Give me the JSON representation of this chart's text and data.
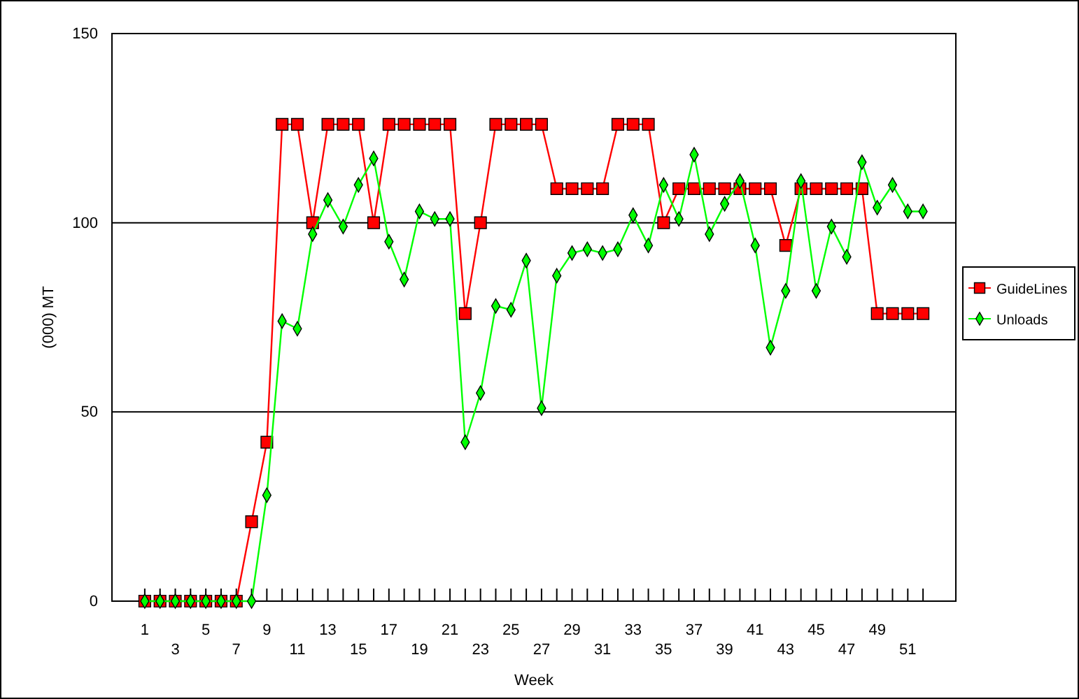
{
  "chart_data": {
    "type": "line",
    "xlabel": "Week",
    "ylabel": "(000) MT",
    "categories": [
      "1",
      null,
      "3",
      null,
      "5",
      null,
      "7",
      null,
      "9",
      null,
      "11",
      null,
      "13",
      null,
      "15",
      null,
      "17",
      null,
      "19",
      null,
      "21",
      null,
      "23",
      null,
      "25",
      null,
      "27",
      null,
      "29",
      null,
      "31",
      null,
      "33",
      null,
      "35",
      null,
      "37",
      null,
      "39",
      null,
      "41",
      null,
      "43",
      null,
      "45",
      null,
      "47",
      null,
      "49",
      null,
      "51",
      null
    ],
    "ylim": [
      0,
      150
    ],
    "yticks": [
      0,
      50,
      100,
      150
    ],
    "grid": "y",
    "legend": "right",
    "series": [
      {
        "name": "GuideLines",
        "color": "#ff0000",
        "marker": "square",
        "values": [
          0,
          0,
          0,
          0,
          0,
          0,
          0,
          21,
          42,
          126,
          126,
          100,
          126,
          126,
          126,
          100,
          126,
          126,
          126,
          126,
          126,
          76,
          100,
          126,
          126,
          126,
          126,
          109,
          109,
          109,
          109,
          126,
          126,
          126,
          100,
          109,
          109,
          109,
          109,
          109,
          109,
          109,
          94,
          109,
          109,
          109,
          109,
          109,
          76,
          76,
          76,
          76
        ]
      },
      {
        "name": "Unloads",
        "color": "#00ff00",
        "marker": "diamond",
        "values": [
          0,
          0,
          0,
          0,
          0,
          0,
          0,
          0,
          28,
          74,
          72,
          97,
          106,
          99,
          110,
          117,
          95,
          85,
          103,
          101,
          101,
          42,
          55,
          78,
          77,
          90,
          51,
          86,
          92,
          93,
          92,
          93,
          102,
          94,
          110,
          101,
          118,
          97,
          105,
          111,
          94,
          67,
          82,
          111,
          82,
          99,
          91,
          116,
          104,
          110,
          103,
          103
        ]
      }
    ]
  }
}
